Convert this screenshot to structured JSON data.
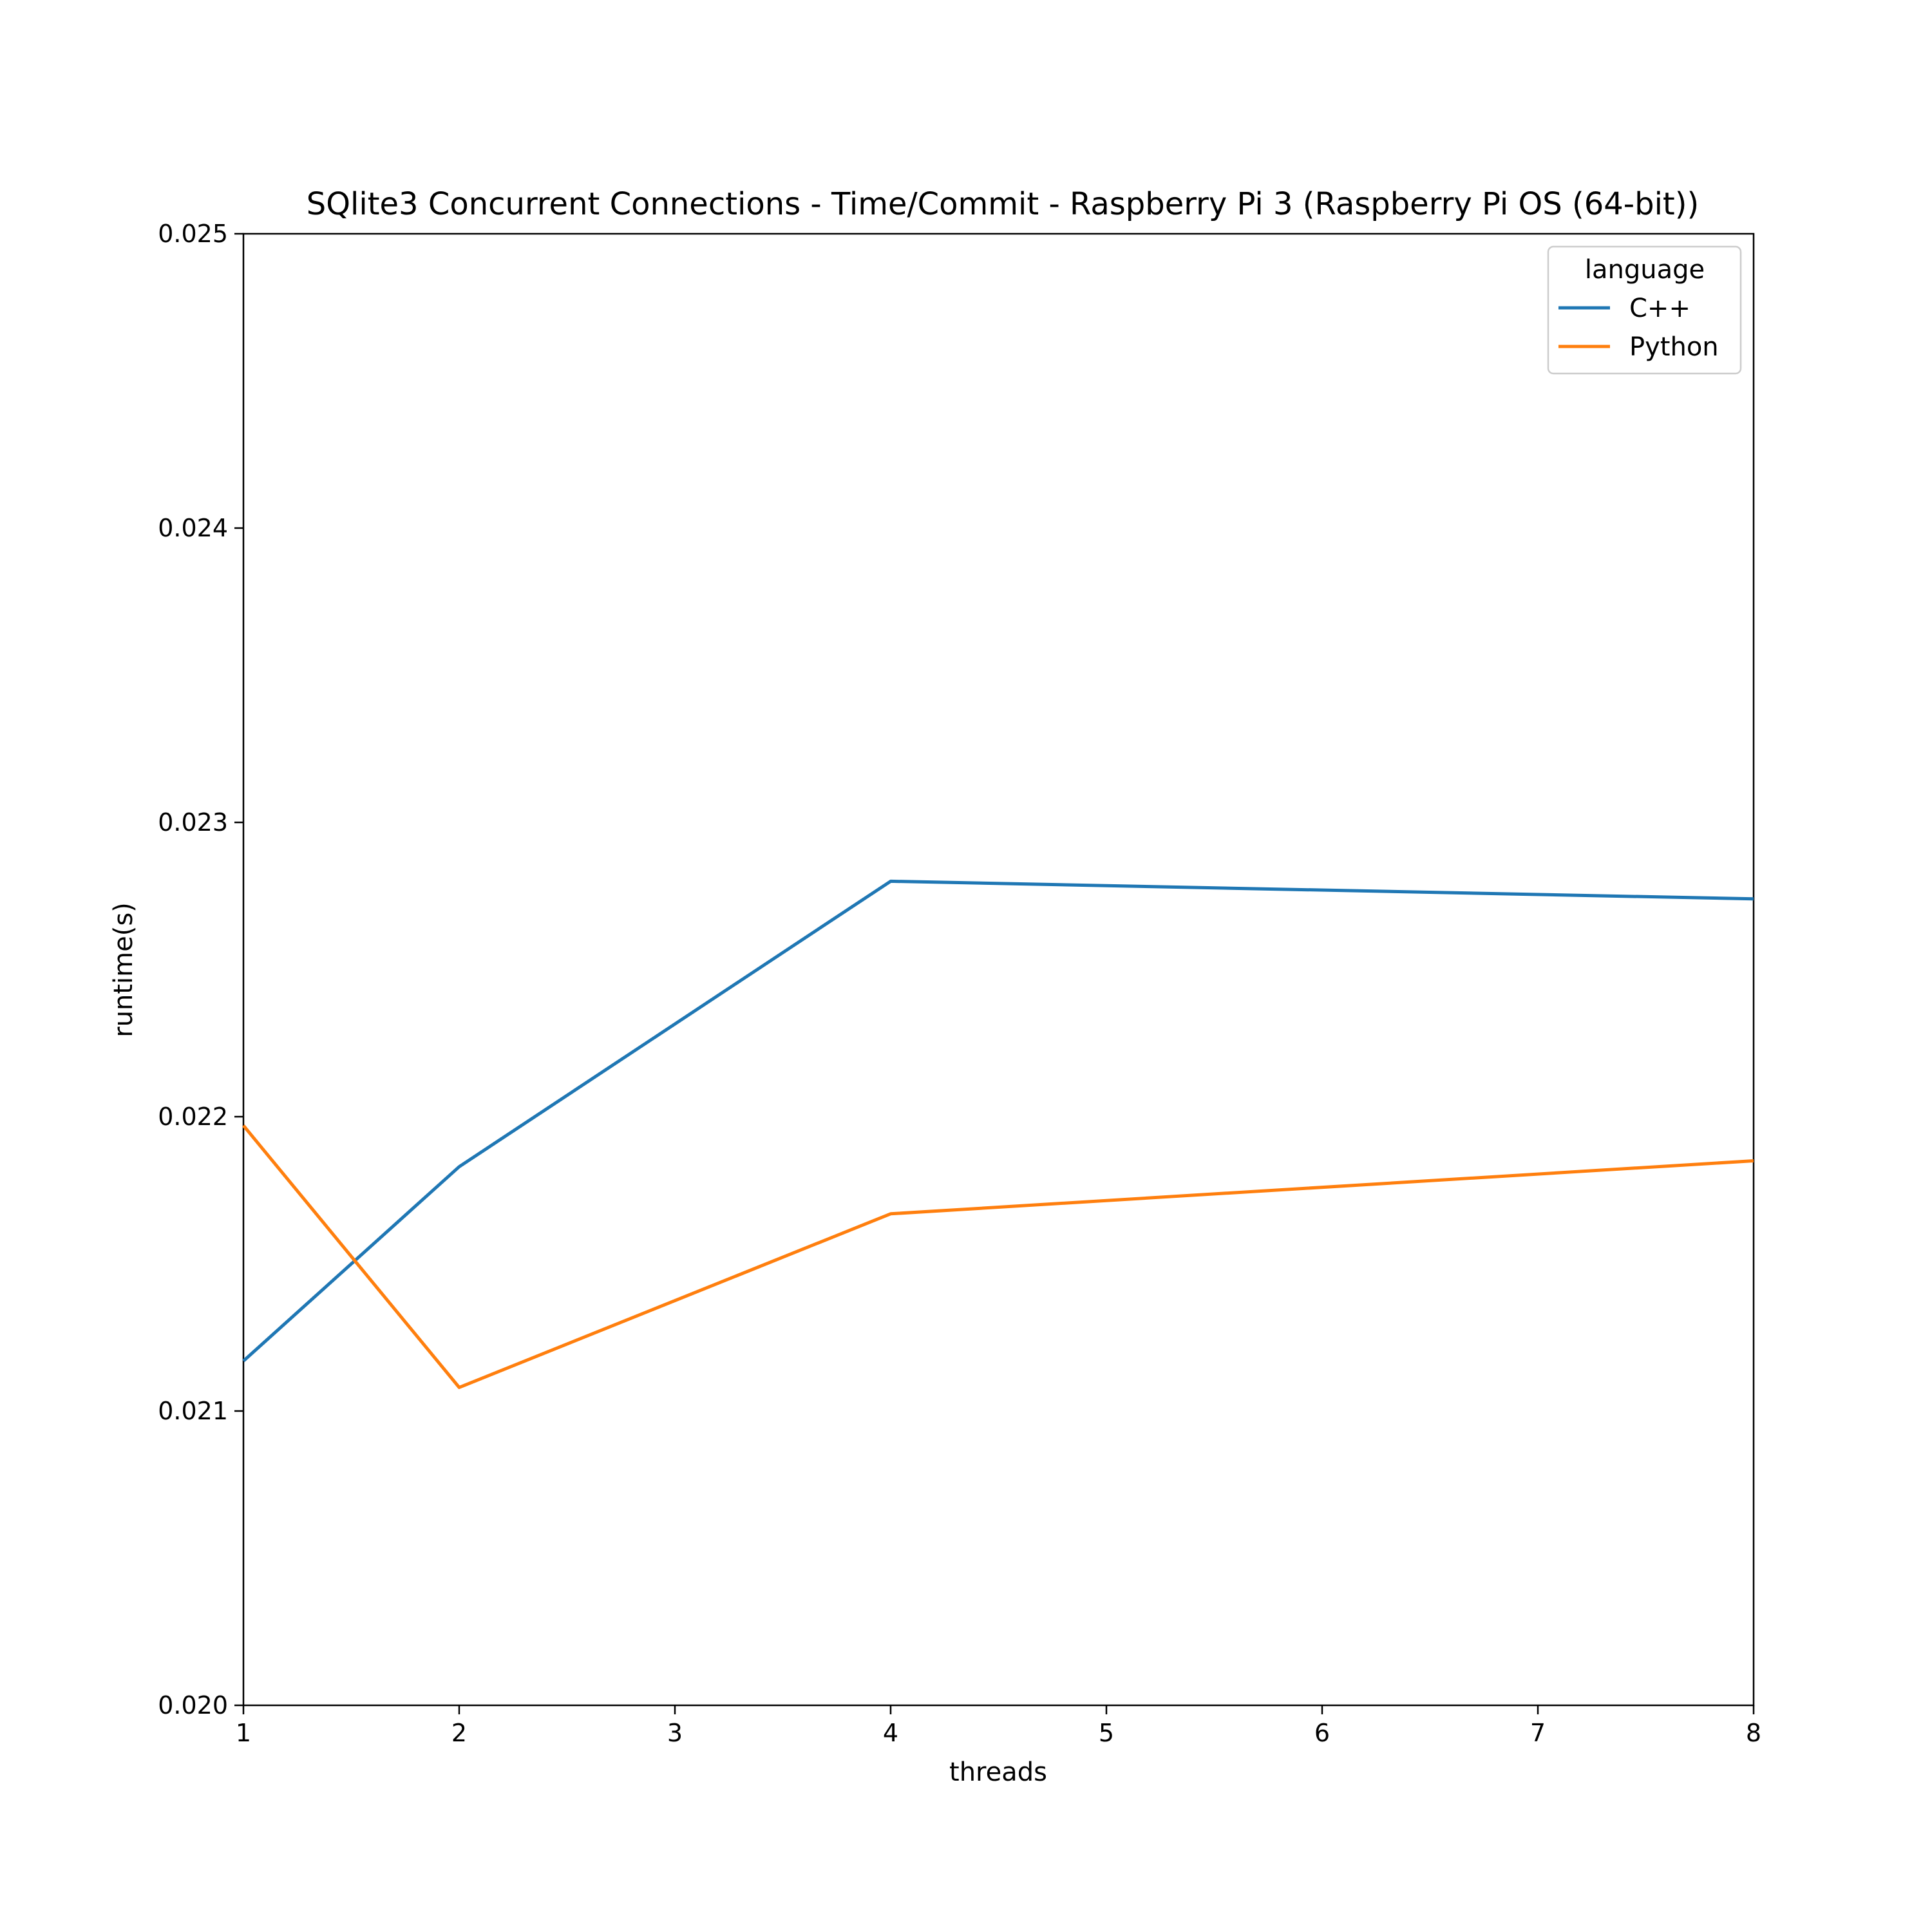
{
  "chart_data": {
    "type": "line",
    "title": "SQlite3 Concurrent Connections - Time/Commit - Raspberry Pi 3 (Raspberry Pi OS (64-bit))",
    "xlabel": "threads",
    "ylabel": "runtime(s)",
    "xlim": [
      1,
      8
    ],
    "ylim": [
      0.02,
      0.025
    ],
    "x_ticks": [
      "1",
      "2",
      "3",
      "4",
      "5",
      "6",
      "7",
      "8"
    ],
    "y_ticks": [
      "0.020",
      "0.021",
      "0.022",
      "0.023",
      "0.024",
      "0.025"
    ],
    "grid": false,
    "legend": {
      "title": "language",
      "placement": "top-right"
    },
    "series": [
      {
        "name": "C++",
        "color": "#1f77b4",
        "x": [
          1,
          2,
          4,
          8
        ],
        "y": [
          0.02117,
          0.02183,
          0.0228,
          0.02274
        ]
      },
      {
        "name": "Python",
        "color": "#ff7f0e",
        "x": [
          1,
          2,
          4,
          8
        ],
        "y": [
          0.02197,
          0.02108,
          0.02167,
          0.02185
        ]
      }
    ]
  }
}
